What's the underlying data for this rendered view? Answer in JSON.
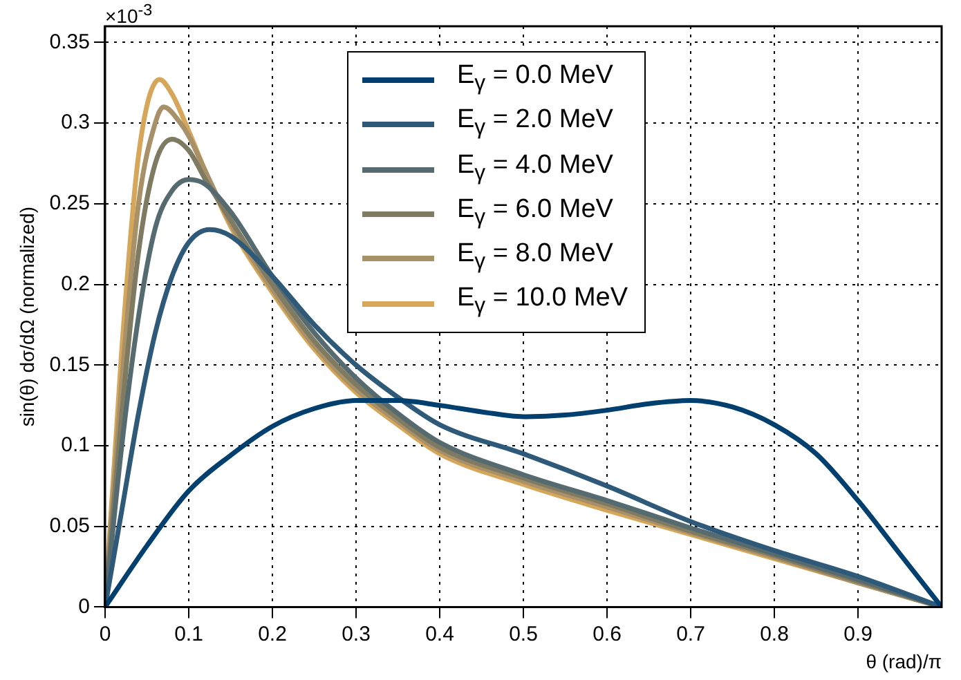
{
  "chart_data": {
    "type": "line",
    "xlabel": "θ (rad)/π",
    "ylabel": "sin(θ) dσ/dΩ (normalized)",
    "annotations": [
      "×10$^{-3}$"
    ],
    "xlim": [
      0,
      1
    ],
    "xticks": [
      0,
      0.1,
      0.2,
      0.3,
      0.4,
      0.5,
      0.6,
      0.7,
      0.8,
      0.9
    ],
    "ylim": [
      0,
      0.36
    ],
    "yticks": [
      0,
      0.05,
      0.1,
      0.15,
      0.2,
      0.25,
      0.3,
      0.35
    ],
    "grid": true,
    "legend": "top",
    "marker": "none",
    "series": [
      {
        "name": "E$_{γ}$ = 0.0 MeV",
        "color": "#003f6e",
        "x": [
          0,
          0.05,
          0.1,
          0.15,
          0.2,
          0.25,
          0.3,
          0.35,
          0.4,
          0.45,
          0.5,
          0.55,
          0.6,
          0.65,
          0.7,
          0.75,
          0.8,
          0.85,
          0.9,
          0.95,
          1
        ],
        "values": [
          0,
          0.038,
          0.072,
          0.094,
          0.112,
          0.123,
          0.128,
          0.128,
          0.125,
          0.121,
          0.118,
          0.119,
          0.122,
          0.126,
          0.128,
          0.124,
          0.113,
          0.095,
          0.066,
          0.033,
          0
        ]
      },
      {
        "name": "E$_{γ}$ = 2.0 MeV",
        "color": "#2f5978",
        "x": [
          0,
          0.02,
          0.04,
          0.06,
          0.08,
          0.1,
          0.125,
          0.15,
          0.2,
          0.25,
          0.3,
          0.35,
          0.4,
          0.5,
          0.6,
          0.7,
          0.8,
          0.9,
          1
        ],
        "values": [
          0,
          0.06,
          0.12,
          0.17,
          0.205,
          0.226,
          0.234,
          0.23,
          0.205,
          0.175,
          0.15,
          0.13,
          0.113,
          0.095,
          0.075,
          0.053,
          0.035,
          0.019,
          0
        ]
      },
      {
        "name": "E$_{γ}$ = 4.0 MeV",
        "color": "#566b70",
        "x": [
          0,
          0.02,
          0.04,
          0.06,
          0.08,
          0.1,
          0.12,
          0.15,
          0.2,
          0.25,
          0.3,
          0.35,
          0.4,
          0.5,
          0.6,
          0.7,
          0.8,
          0.9,
          1
        ],
        "values": [
          0,
          0.1,
          0.18,
          0.235,
          0.258,
          0.265,
          0.262,
          0.245,
          0.205,
          0.17,
          0.142,
          0.12,
          0.102,
          0.082,
          0.066,
          0.049,
          0.033,
          0.017,
          0
        ]
      },
      {
        "name": "E$_{γ}$ = 6.0 MeV",
        "color": "#7f7a62",
        "x": [
          0,
          0.02,
          0.04,
          0.06,
          0.08,
          0.1,
          0.12,
          0.15,
          0.2,
          0.25,
          0.3,
          0.35,
          0.4,
          0.5,
          0.6,
          0.7,
          0.8,
          0.9,
          1
        ],
        "values": [
          0,
          0.12,
          0.22,
          0.275,
          0.29,
          0.283,
          0.265,
          0.24,
          0.2,
          0.165,
          0.138,
          0.117,
          0.099,
          0.08,
          0.064,
          0.047,
          0.032,
          0.016,
          0
        ]
      },
      {
        "name": "E$_{γ}$ = 8.0 MeV",
        "color": "#a89068",
        "x": [
          0,
          0.02,
          0.04,
          0.06,
          0.07,
          0.09,
          0.1,
          0.12,
          0.15,
          0.2,
          0.25,
          0.3,
          0.35,
          0.4,
          0.5,
          0.6,
          0.7,
          0.8,
          0.9,
          1
        ],
        "values": [
          0,
          0.14,
          0.25,
          0.3,
          0.31,
          0.3,
          0.292,
          0.27,
          0.238,
          0.197,
          0.162,
          0.135,
          0.115,
          0.097,
          0.078,
          0.062,
          0.046,
          0.031,
          0.015,
          0
        ]
      },
      {
        "name": "E$_{γ}$ = 10.0 MeV",
        "color": "#d6a65a",
        "x": [
          0,
          0.02,
          0.04,
          0.065,
          0.08,
          0.1,
          0.12,
          0.15,
          0.2,
          0.25,
          0.3,
          0.35,
          0.4,
          0.5,
          0.6,
          0.7,
          0.8,
          0.9,
          1
        ],
        "values": [
          0,
          0.16,
          0.28,
          0.327,
          0.318,
          0.295,
          0.27,
          0.236,
          0.195,
          0.16,
          0.133,
          0.113,
          0.095,
          0.076,
          0.06,
          0.045,
          0.03,
          0.015,
          0
        ]
      }
    ]
  }
}
